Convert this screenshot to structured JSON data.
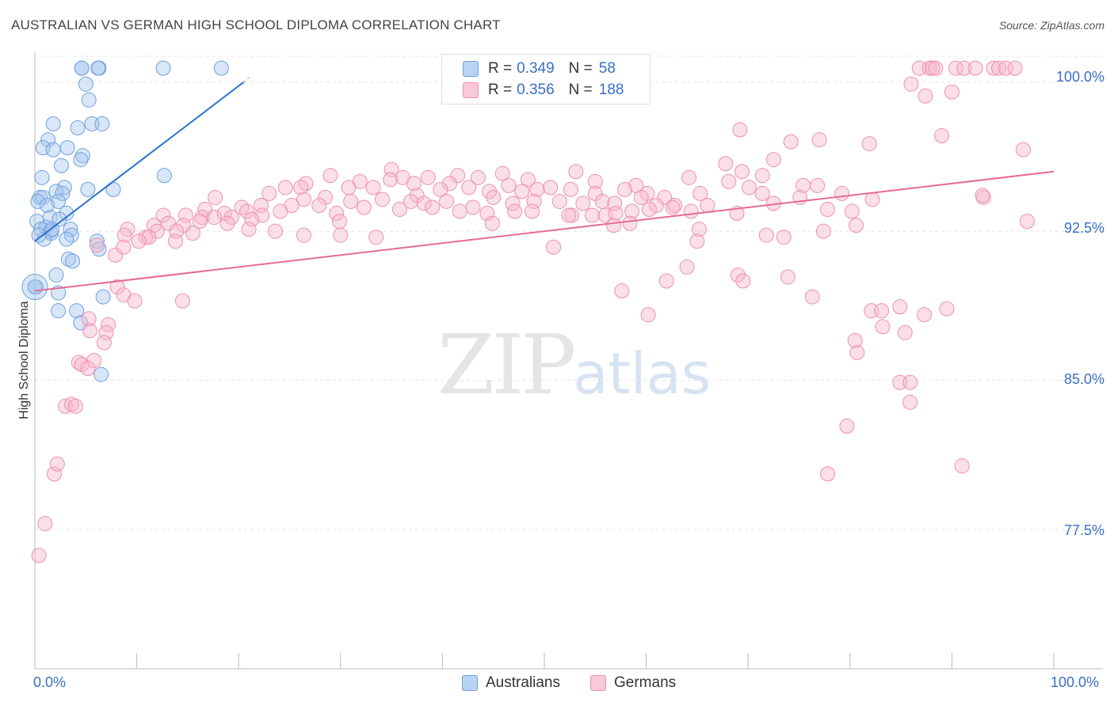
{
  "title": "AUSTRALIAN VS GERMAN HIGH SCHOOL DIPLOMA CORRELATION CHART",
  "source": "Source: ZipAtlas.com",
  "watermark": {
    "zip": "ZIP",
    "atlas": "atlas"
  },
  "legend": {
    "r_label": "R =",
    "n_label": "N =",
    "rows": [
      {
        "r": "0.349",
        "n": "58"
      },
      {
        "r": "0.356",
        "n": "188"
      }
    ]
  },
  "colors": {
    "australians_fill": "#a9c7ee",
    "australians_stroke": "#6f9fe0",
    "australians_line": "#2f73cc",
    "germans_fill": "#f6b8cb",
    "germans_stroke": "#ee8fb0",
    "germans_line": "#e56a95",
    "tick_text": "#3a6fc6"
  },
  "chart_data": {
    "type": "scatter",
    "title": "AUSTRALIAN VS GERMAN HIGH SCHOOL DIPLOMA CORRELATION CHART",
    "xlabel": "",
    "ylabel": "High School Diploma",
    "xlim": [
      0,
      100
    ],
    "ylim": [
      70.5,
      101.5
    ],
    "x_tick_labels": [
      "0.0%",
      "100.0%"
    ],
    "y_ticks": [
      77.5,
      85.0,
      92.5,
      100.0
    ],
    "y_tick_labels": [
      "77.5%",
      "85.0%",
      "92.5%",
      "100.0%"
    ],
    "grid": true,
    "legend_position": "top-center",
    "series": [
      {
        "name": "Australians",
        "r": 0.349,
        "n": 58,
        "trend": {
          "x": [
            0,
            20.5
          ],
          "y": [
            92.0,
            100.0
          ]
        },
        "points": [
          [
            4.6,
            100.7
          ],
          [
            6.3,
            100.7
          ],
          [
            6.2,
            100.7
          ],
          [
            12.6,
            100.7
          ],
          [
            18.3,
            100.7
          ],
          [
            4.6,
            100.7
          ],
          [
            5.0,
            99.9
          ],
          [
            5.3,
            99.1
          ],
          [
            1.8,
            97.9
          ],
          [
            5.6,
            97.9
          ],
          [
            6.6,
            97.9
          ],
          [
            4.2,
            97.7
          ],
          [
            1.3,
            97.1
          ],
          [
            0.8,
            96.7
          ],
          [
            1.8,
            96.6
          ],
          [
            3.2,
            96.7
          ],
          [
            4.7,
            96.3
          ],
          [
            4.5,
            96.1
          ],
          [
            2.6,
            95.8
          ],
          [
            0.7,
            95.2
          ],
          [
            12.7,
            95.3
          ],
          [
            2.9,
            94.7
          ],
          [
            5.2,
            94.6
          ],
          [
            7.7,
            94.6
          ],
          [
            2.1,
            94.5
          ],
          [
            2.7,
            94.4
          ],
          [
            0.5,
            94.2
          ],
          [
            0.8,
            94.2
          ],
          [
            0.3,
            94.0
          ],
          [
            2.3,
            94.0
          ],
          [
            1.2,
            93.8
          ],
          [
            3.1,
            93.4
          ],
          [
            1.5,
            93.2
          ],
          [
            0.2,
            93.0
          ],
          [
            1.1,
            92.7
          ],
          [
            0.6,
            92.6
          ],
          [
            1.5,
            92.5
          ],
          [
            3.5,
            92.6
          ],
          [
            1.6,
            92.4
          ],
          [
            3.6,
            92.3
          ],
          [
            0.9,
            92.1
          ],
          [
            6.1,
            92.0
          ],
          [
            3.1,
            92.1
          ],
          [
            6.3,
            91.6
          ],
          [
            3.3,
            91.1
          ],
          [
            3.7,
            91.0
          ],
          [
            2.1,
            90.3
          ],
          [
            0.1,
            89.7
          ],
          [
            2.3,
            89.4
          ],
          [
            6.7,
            89.2
          ],
          [
            2.3,
            88.5
          ],
          [
            4.1,
            88.5
          ],
          [
            4.5,
            87.9
          ],
          [
            6.5,
            85.3
          ],
          [
            0.0,
            89.7
          ],
          [
            1.7,
            92.6
          ],
          [
            2.4,
            93.1
          ],
          [
            0.4,
            92.3
          ]
        ]
      },
      {
        "name": "Germans",
        "r": 0.356,
        "n": 188,
        "trend": {
          "x": [
            0,
            100
          ],
          "y": [
            89.5,
            95.5
          ]
        },
        "points": [
          [
            86.8,
            100.7
          ],
          [
            87.8,
            100.7
          ],
          [
            88.1,
            100.7
          ],
          [
            88.4,
            100.7
          ],
          [
            90.4,
            100.7
          ],
          [
            91.2,
            100.7
          ],
          [
            92.3,
            100.7
          ],
          [
            94.1,
            100.7
          ],
          [
            94.6,
            100.7
          ],
          [
            95.3,
            100.7
          ],
          [
            96.2,
            100.7
          ],
          [
            86.0,
            99.9
          ],
          [
            87.4,
            99.3
          ],
          [
            90.0,
            99.5
          ],
          [
            89.0,
            97.3
          ],
          [
            97.0,
            96.6
          ],
          [
            69.2,
            97.6
          ],
          [
            74.2,
            97.0
          ],
          [
            77.0,
            97.1
          ],
          [
            81.9,
            96.9
          ],
          [
            72.5,
            96.1
          ],
          [
            69.4,
            95.5
          ],
          [
            71.4,
            95.3
          ],
          [
            75.4,
            94.8
          ],
          [
            67.8,
            95.9
          ],
          [
            35.0,
            95.6
          ],
          [
            45.9,
            95.4
          ],
          [
            53.1,
            95.5
          ],
          [
            41.5,
            95.3
          ],
          [
            38.6,
            95.2
          ],
          [
            43.5,
            95.2
          ],
          [
            29.0,
            95.3
          ],
          [
            31.9,
            95.0
          ],
          [
            34.9,
            95.1
          ],
          [
            36.1,
            95.2
          ],
          [
            37.2,
            94.9
          ],
          [
            40.7,
            94.9
          ],
          [
            48.4,
            95.1
          ],
          [
            55.0,
            95.0
          ],
          [
            59.0,
            94.8
          ],
          [
            64.2,
            95.2
          ],
          [
            68.1,
            95.0
          ],
          [
            70.1,
            94.7
          ],
          [
            76.8,
            94.8
          ],
          [
            26.6,
            94.9
          ],
          [
            23.0,
            94.4
          ],
          [
            24.6,
            94.7
          ],
          [
            26.1,
            94.7
          ],
          [
            30.8,
            94.7
          ],
          [
            33.2,
            94.7
          ],
          [
            37.5,
            94.3
          ],
          [
            39.8,
            94.6
          ],
          [
            42.6,
            94.7
          ],
          [
            44.6,
            94.5
          ],
          [
            46.5,
            94.8
          ],
          [
            47.8,
            94.5
          ],
          [
            49.3,
            94.6
          ],
          [
            50.6,
            94.7
          ],
          [
            52.6,
            94.6
          ],
          [
            55.0,
            94.4
          ],
          [
            57.9,
            94.6
          ],
          [
            60.1,
            94.4
          ],
          [
            61.8,
            94.2
          ],
          [
            65.3,
            94.4
          ],
          [
            71.4,
            94.4
          ],
          [
            75.1,
            94.2
          ],
          [
            79.2,
            94.4
          ],
          [
            82.2,
            94.1
          ],
          [
            93.1,
            94.2
          ],
          [
            26.4,
            94.1
          ],
          [
            28.5,
            94.2
          ],
          [
            31.0,
            94.0
          ],
          [
            34.1,
            94.1
          ],
          [
            36.9,
            94.0
          ],
          [
            38.2,
            93.9
          ],
          [
            40.4,
            94.0
          ],
          [
            43.0,
            93.7
          ],
          [
            45.0,
            94.2
          ],
          [
            46.9,
            93.9
          ],
          [
            49.0,
            94.0
          ],
          [
            51.5,
            94.0
          ],
          [
            53.8,
            93.9
          ],
          [
            55.7,
            94.0
          ],
          [
            56.9,
            93.9
          ],
          [
            59.5,
            94.2
          ],
          [
            61.0,
            93.8
          ],
          [
            62.8,
            93.8
          ],
          [
            64.4,
            93.5
          ],
          [
            66.0,
            93.8
          ],
          [
            68.9,
            93.4
          ],
          [
            72.5,
            93.9
          ],
          [
            77.8,
            93.6
          ],
          [
            80.2,
            93.5
          ],
          [
            17.7,
            94.2
          ],
          [
            20.3,
            93.7
          ],
          [
            22.2,
            93.8
          ],
          [
            25.2,
            93.8
          ],
          [
            27.9,
            93.8
          ],
          [
            29.6,
            93.4
          ],
          [
            32.3,
            93.7
          ],
          [
            35.8,
            93.6
          ],
          [
            39.0,
            93.7
          ],
          [
            41.7,
            93.5
          ],
          [
            44.4,
            93.4
          ],
          [
            47.1,
            93.5
          ],
          [
            48.8,
            93.5
          ],
          [
            52.7,
            93.3
          ],
          [
            54.7,
            93.3
          ],
          [
            56.0,
            93.3
          ],
          [
            57.0,
            93.4
          ],
          [
            58.6,
            93.5
          ],
          [
            60.3,
            93.6
          ],
          [
            62.6,
            93.7
          ],
          [
            16.7,
            93.6
          ],
          [
            18.6,
            93.4
          ],
          [
            20.8,
            93.5
          ],
          [
            22.3,
            93.3
          ],
          [
            24.1,
            93.5
          ],
          [
            12.6,
            93.3
          ],
          [
            14.8,
            93.3
          ],
          [
            16.4,
            93.2
          ],
          [
            17.6,
            93.2
          ],
          [
            19.3,
            93.2
          ],
          [
            21.3,
            93.1
          ],
          [
            9.1,
            92.6
          ],
          [
            11.7,
            92.8
          ],
          [
            13.1,
            92.9
          ],
          [
            14.6,
            92.8
          ],
          [
            16.2,
            93.0
          ],
          [
            18.9,
            92.9
          ],
          [
            29.9,
            93.0
          ],
          [
            44.9,
            92.9
          ],
          [
            52.4,
            93.3
          ],
          [
            56.8,
            92.8
          ],
          [
            58.4,
            92.9
          ],
          [
            65.2,
            92.6
          ],
          [
            12.0,
            92.5
          ],
          [
            13.9,
            92.5
          ],
          [
            15.5,
            92.4
          ],
          [
            10.9,
            92.2
          ],
          [
            21.0,
            92.6
          ],
          [
            65.0,
            92.0
          ],
          [
            71.8,
            92.3
          ],
          [
            73.5,
            92.2
          ],
          [
            77.4,
            92.5
          ],
          [
            80.6,
            92.8
          ],
          [
            97.4,
            93.0
          ],
          [
            8.8,
            92.3
          ],
          [
            11.2,
            92.2
          ],
          [
            13.8,
            92.0
          ],
          [
            6.1,
            91.8
          ],
          [
            7.9,
            91.3
          ],
          [
            8.7,
            91.7
          ],
          [
            10.2,
            92.0
          ],
          [
            26.4,
            92.3
          ],
          [
            23.6,
            92.5
          ],
          [
            30.0,
            92.3
          ],
          [
            33.5,
            92.2
          ],
          [
            50.9,
            91.7
          ],
          [
            62.0,
            90.0
          ],
          [
            64.0,
            90.7
          ],
          [
            69.0,
            90.3
          ],
          [
            69.5,
            90.0
          ],
          [
            73.9,
            90.2
          ],
          [
            57.6,
            89.5
          ],
          [
            60.2,
            88.3
          ],
          [
            8.1,
            89.7
          ],
          [
            8.7,
            89.3
          ],
          [
            9.8,
            89.0
          ],
          [
            14.5,
            89.0
          ],
          [
            76.3,
            89.2
          ],
          [
            82.1,
            88.5
          ],
          [
            5.3,
            88.1
          ],
          [
            5.4,
            87.5
          ],
          [
            7.2,
            87.8
          ],
          [
            7.0,
            87.4
          ],
          [
            6.8,
            86.9
          ],
          [
            5.8,
            86.0
          ],
          [
            93.0,
            94.3
          ],
          [
            83.1,
            88.5
          ],
          [
            84.9,
            88.7
          ],
          [
            87.3,
            88.3
          ],
          [
            89.5,
            88.6
          ],
          [
            80.5,
            87.0
          ],
          [
            83.2,
            87.7
          ],
          [
            85.4,
            87.4
          ],
          [
            4.3,
            85.9
          ],
          [
            4.6,
            85.8
          ],
          [
            5.2,
            85.6
          ],
          [
            80.7,
            86.4
          ],
          [
            3.0,
            83.7
          ],
          [
            3.6,
            83.8
          ],
          [
            4.0,
            83.7
          ],
          [
            84.9,
            84.9
          ],
          [
            85.9,
            84.9
          ],
          [
            85.9,
            83.9
          ],
          [
            79.7,
            82.7
          ],
          [
            0.4,
            76.2
          ],
          [
            1.0,
            77.8
          ],
          [
            1.9,
            80.3
          ],
          [
            2.2,
            80.8
          ],
          [
            77.8,
            80.3
          ],
          [
            91.0,
            80.7
          ]
        ]
      }
    ]
  }
}
